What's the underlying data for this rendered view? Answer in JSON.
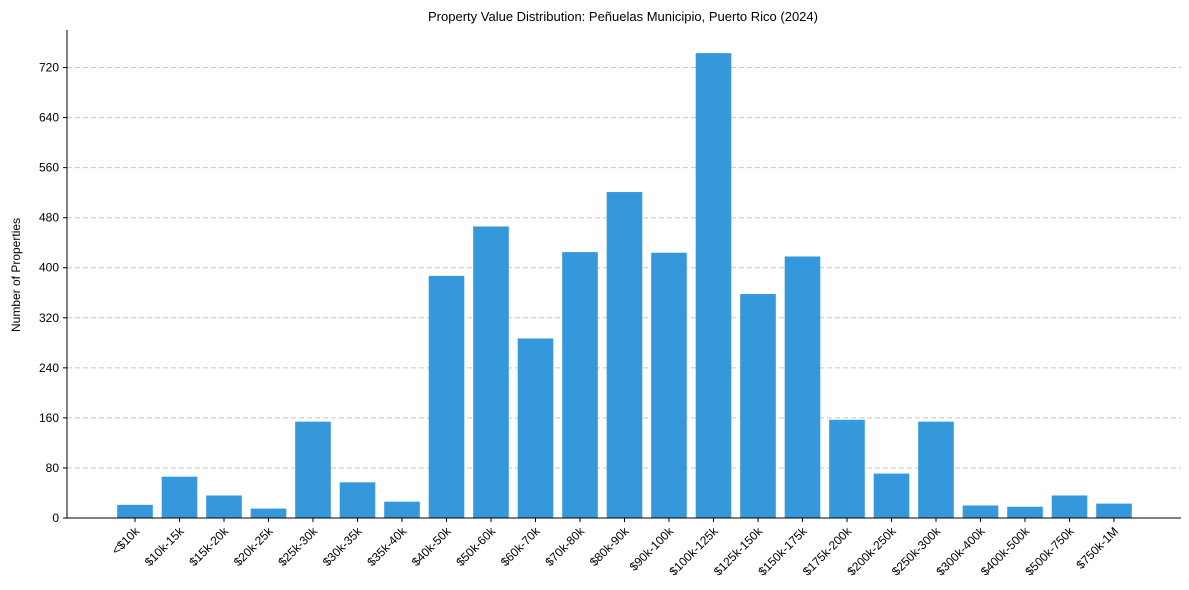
{
  "chart_data": {
    "type": "bar",
    "title": "Property Value Distribution: Peñuelas Municipio, Puerto Rico (2024)",
    "xlabel": "",
    "ylabel": "Number of Properties",
    "categories": [
      "<$10k",
      "$10k-15k",
      "$15k-20k",
      "$20k-25k",
      "$25k-30k",
      "$30k-35k",
      "$35k-40k",
      "$40k-50k",
      "$50k-60k",
      "$60k-70k",
      "$70k-80k",
      "$80k-90k",
      "$90k-100k",
      "$100k-125k",
      "$125k-150k",
      "$150k-175k",
      "$175k-200k",
      "$200k-250k",
      "$250k-300k",
      "$300k-400k",
      "$400k-500k",
      "$500k-750k",
      "$750k-1M"
    ],
    "values": [
      21,
      66,
      36,
      15,
      154,
      57,
      26,
      387,
      466,
      287,
      425,
      521,
      424,
      743,
      358,
      418,
      157,
      71,
      154,
      20,
      18,
      36,
      23
    ],
    "yticks": [
      0,
      80,
      160,
      240,
      320,
      400,
      480,
      560,
      640,
      720
    ],
    "ylim": [
      0,
      780
    ],
    "grid": "y-dashed",
    "bar_color": "#3498db"
  }
}
